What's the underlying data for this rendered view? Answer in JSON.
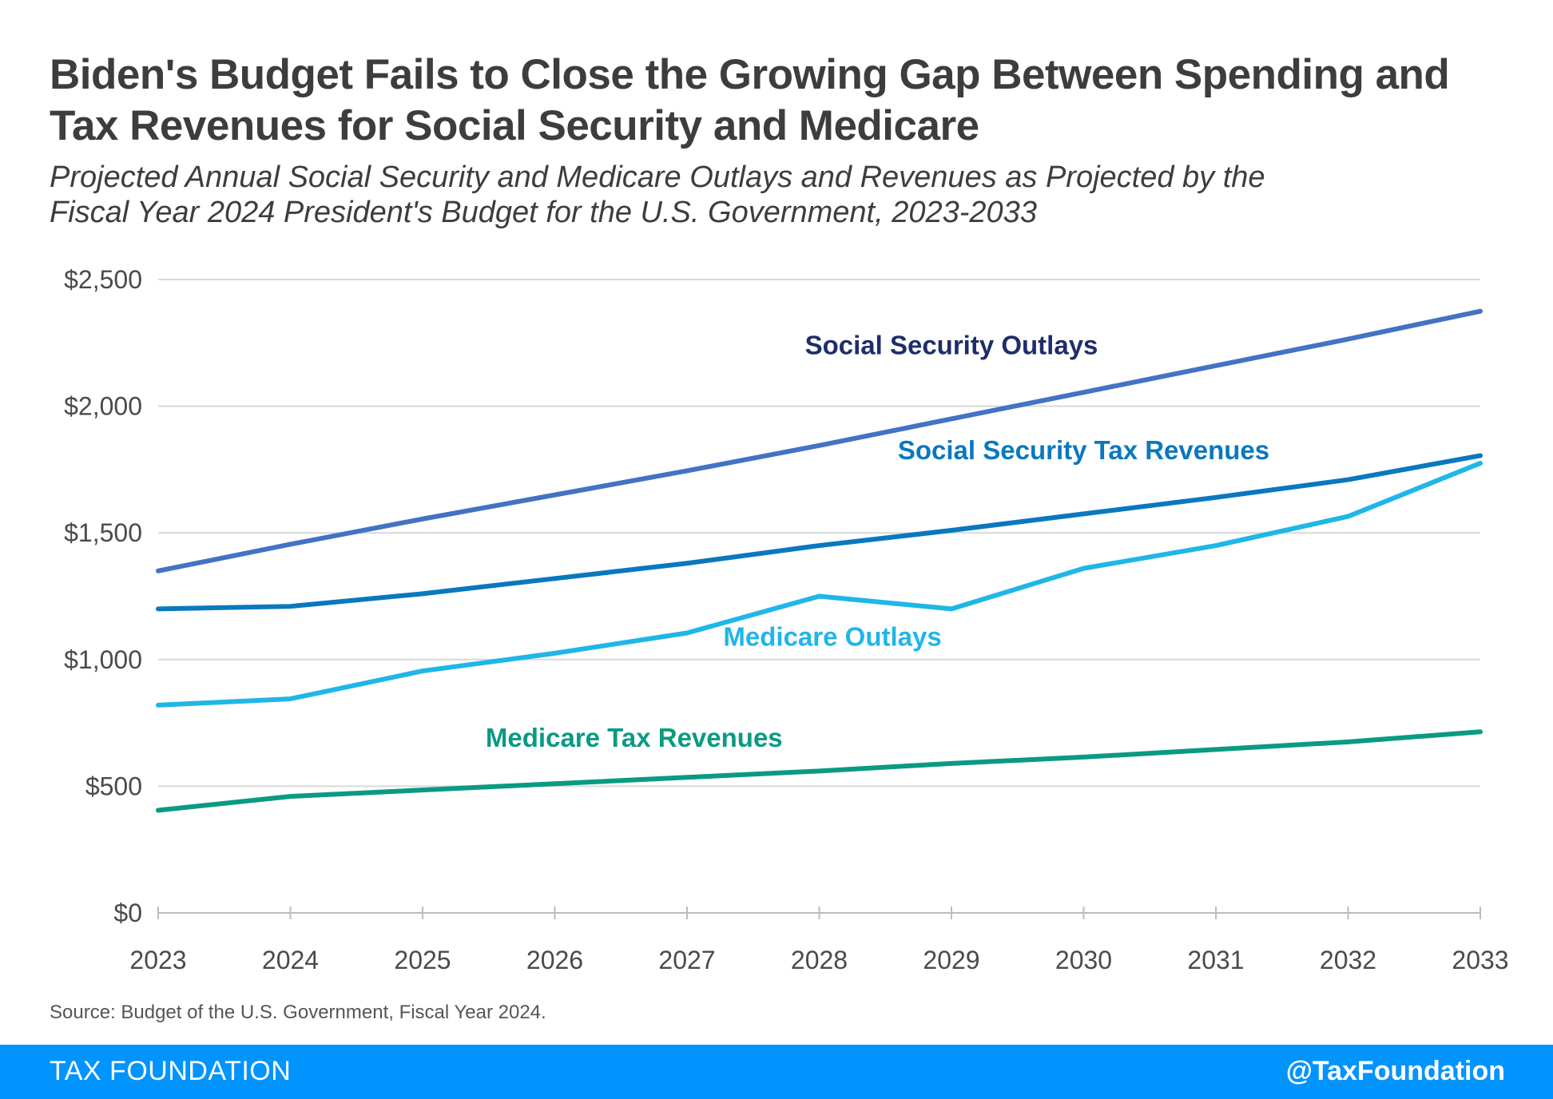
{
  "title": "Biden's Budget Fails to Close the Growing Gap Between Spending and Tax Revenues for Social Security and Medicare",
  "subtitle_line1": "Projected Annual Social Security and Medicare Outlays and Revenues as Projected by the",
  "subtitle_line2": "Fiscal Year 2024 President's Budget for the U.S. Government, 2023-2033",
  "source": "Source: Budget of the U.S. Government, Fiscal Year 2024.",
  "footer": {
    "brand": "TAX FOUNDATION",
    "handle": "@TaxFoundation",
    "background_color": "#0094ff"
  },
  "chart_data": {
    "type": "line",
    "x": [
      2023,
      2024,
      2025,
      2026,
      2027,
      2028,
      2029,
      2030,
      2031,
      2032,
      2033
    ],
    "ylim": [
      0,
      2500
    ],
    "y_ticks": [
      0,
      500,
      1000,
      1500,
      2000,
      2500
    ],
    "y_tick_labels": [
      "$0",
      "$500",
      "$1,000",
      "$1,500",
      "$2,000",
      "$2,500"
    ],
    "grid": true,
    "series": [
      {
        "name": "Social Security Outlays",
        "color": "#4472c4",
        "label_color": "#1f2d6b",
        "label_at": [
          2029.0,
          2205
        ],
        "values": [
          1350,
          1455,
          1555,
          1650,
          1745,
          1845,
          1950,
          2055,
          2160,
          2265,
          2375
        ]
      },
      {
        "name": "Social Security Tax Revenues",
        "color": "#0a78be",
        "label_color": "#0a78be",
        "label_at": [
          2030.0,
          1790
        ],
        "values": [
          1200,
          1210,
          1260,
          1320,
          1380,
          1450,
          1510,
          1575,
          1640,
          1710,
          1805
        ]
      },
      {
        "name": "Medicare Outlays",
        "color": "#1fb6e8",
        "label_color": "#1fb6e8",
        "label_at": [
          2028.1,
          1055
        ],
        "values": [
          820,
          845,
          955,
          1025,
          1105,
          1250,
          1200,
          1360,
          1450,
          1565,
          1775
        ]
      },
      {
        "name": "Medicare Tax Revenues",
        "color": "#0a9a82",
        "label_color": "#0a9a82",
        "label_at": [
          2026.6,
          655
        ],
        "values": [
          405,
          460,
          485,
          510,
          535,
          560,
          590,
          615,
          645,
          675,
          715
        ]
      }
    ]
  }
}
